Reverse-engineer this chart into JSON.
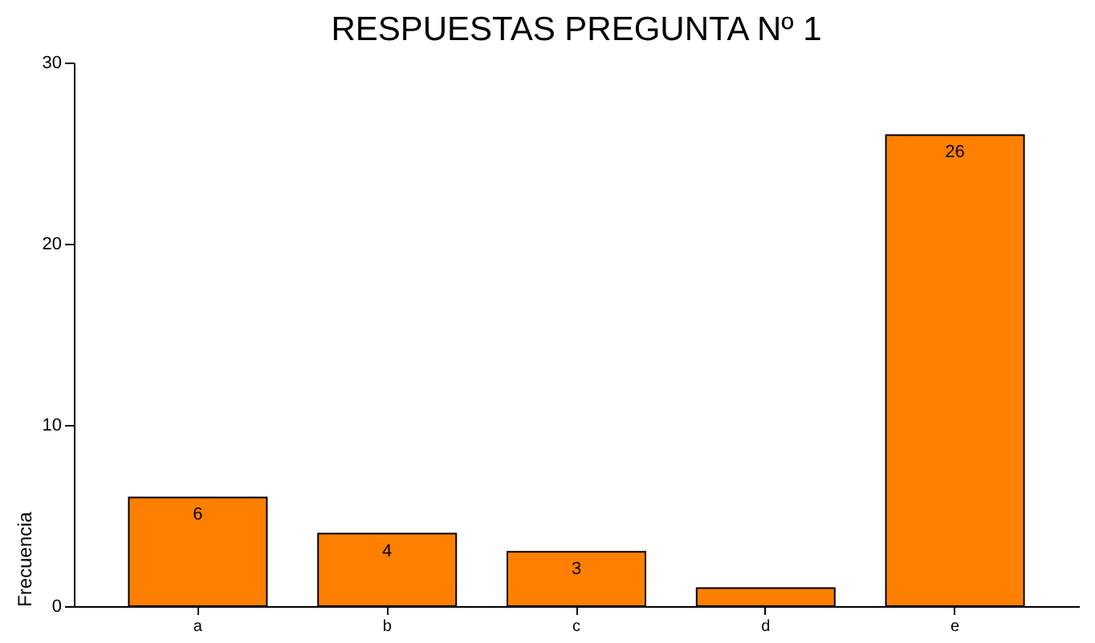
{
  "chart_data": {
    "type": "bar",
    "title": "RESPUESTAS PREGUNTA Nº 1",
    "ylabel": "Frecuencia",
    "categories": [
      "a",
      "b",
      "c",
      "d",
      "e"
    ],
    "values": [
      6,
      4,
      3,
      1,
      26
    ],
    "value_labels": [
      "6",
      "4",
      "3",
      null,
      "26"
    ],
    "color": "#ff8000",
    "ylim": [
      0,
      30
    ],
    "yticks": [
      0,
      10,
      20,
      30
    ],
    "grid": false
  }
}
